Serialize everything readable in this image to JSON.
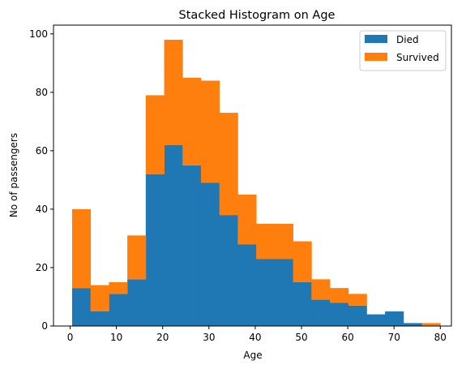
{
  "chart_data": {
    "type": "bar",
    "stacked": true,
    "title": "Stacked Histogram on Age",
    "xlabel": "Age",
    "ylabel": "No of passengers",
    "xlim": [
      -3.6,
      82.4
    ],
    "ylim": [
      0,
      103
    ],
    "x_ticks": [
      0,
      10,
      20,
      30,
      40,
      50,
      60,
      70,
      80
    ],
    "y_ticks": [
      0,
      20,
      40,
      60,
      80,
      100
    ],
    "bin_edges": [
      0.42,
      4.4,
      8.38,
      12.36,
      16.34,
      20.32,
      24.29,
      28.27,
      32.25,
      36.23,
      40.21,
      44.19,
      48.17,
      52.15,
      56.13,
      60.11,
      64.08,
      68.06,
      72.04,
      76.02,
      80.0
    ],
    "series": [
      {
        "name": "Died",
        "color": "#1f77b4",
        "values": [
          13,
          5,
          11,
          16,
          52,
          62,
          55,
          49,
          38,
          28,
          23,
          23,
          15,
          9,
          8,
          7,
          4,
          5,
          1,
          0
        ]
      },
      {
        "name": "Survived",
        "color": "#ff7f0e",
        "values": [
          27,
          9,
          4,
          15,
          27,
          36,
          30,
          35,
          35,
          17,
          12,
          12,
          14,
          7,
          5,
          4,
          0,
          0,
          0,
          1
        ]
      }
    ],
    "legend_position": "top-right",
    "grid": false
  }
}
